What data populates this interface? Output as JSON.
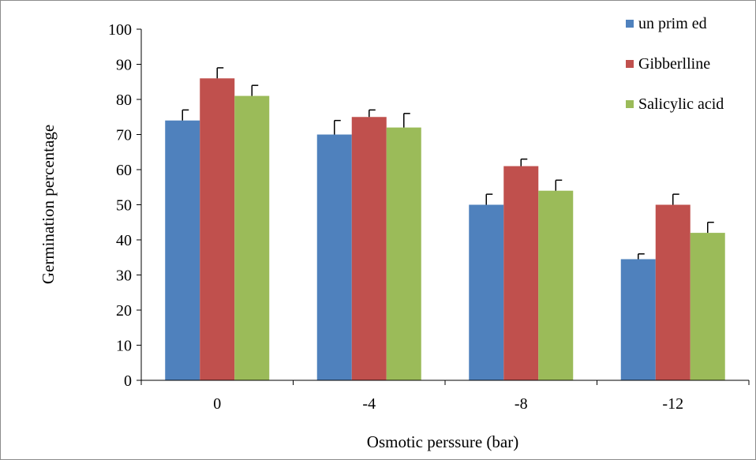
{
  "chart_data": {
    "type": "bar",
    "title": "",
    "xlabel": "Osmotic perssure (bar)",
    "ylabel": "Germination  percentage",
    "ylim": [
      0,
      100
    ],
    "yticks": [
      "0",
      "10",
      "20",
      "30",
      "40",
      "50",
      "60",
      "70",
      "80",
      "90",
      "100"
    ],
    "categories": [
      "0",
      "-4",
      "-8",
      "-12"
    ],
    "grid": false,
    "legend_position": "top-right",
    "series": [
      {
        "name": "un prim ed",
        "color": "#4f81bd",
        "values": [
          74,
          70,
          50,
          34.5
        ],
        "errors": [
          3,
          4,
          3,
          1.5
        ]
      },
      {
        "name": "Gibberlline",
        "color": "#c0504d",
        "values": [
          86,
          75,
          61,
          50
        ],
        "errors": [
          3,
          2,
          2,
          3
        ]
      },
      {
        "name": "Salicylic acid",
        "color": "#9bbb59",
        "values": [
          81,
          72,
          54,
          42
        ],
        "errors": [
          3,
          4,
          3,
          3
        ]
      }
    ]
  }
}
